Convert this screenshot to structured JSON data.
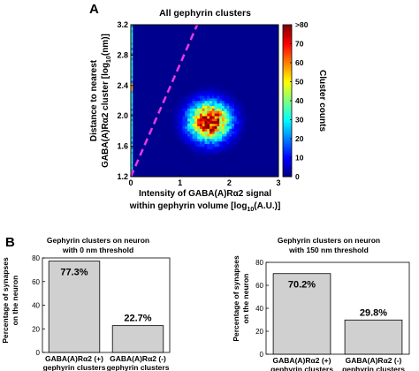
{
  "panels": {
    "A": "A",
    "B": "B"
  },
  "chart_data": [
    {
      "type": "heatmap",
      "title": "All gephyrin clusters",
      "xlabel_line1": "Intensity of GABA(A)Rα2 signal",
      "xlabel_line2_pre": "within gephyrin volume [log",
      "xlabel_line2_sub": "10",
      "xlabel_line2_post": "(A.U.)]",
      "ylabel_line1": "Distance to nearest",
      "ylabel_line2_pre": "GABA(A)Rα2 cluster [log",
      "ylabel_line2_sub": "10",
      "ylabel_line2_post": "(nm)]",
      "xlim": [
        0,
        3
      ],
      "ylim": [
        1.2,
        3.2
      ],
      "xticks": [
        "0",
        "1",
        "2",
        "3"
      ],
      "yticks": [
        "1.2",
        "1.6",
        "2.0",
        "2.4",
        "2.8",
        "3.2"
      ],
      "colorbar": {
        "label": "Cluster counts",
        "range": [
          0,
          80
        ],
        "ticks": [
          "0",
          "10",
          "20",
          "30",
          "40",
          "50",
          "60",
          "70",
          ">80"
        ]
      },
      "density": {
        "peak_x": 1.6,
        "peak_y": 1.93,
        "peak_count": 80,
        "spread_x": 0.28,
        "spread_y": 0.17,
        "bins_x": 60,
        "bins_y": 60,
        "background_count": 0,
        "wall_x": 0.02,
        "wall_count": 55,
        "wall_hot_y": [
          2.34,
          2.44
        ]
      },
      "threshold_line": {
        "from": [
          0,
          1.2
        ],
        "to": [
          1.35,
          3.2
        ],
        "color": "#e838e0",
        "style": "dashed"
      }
    },
    {
      "type": "bar",
      "title_line1": "Gephyrin clusters on neuron",
      "title_line2": "with 0 nm threshold",
      "ylabel_line1": "Percentage of synapses",
      "ylabel_line2": "on the neuron",
      "ylim": [
        0,
        80
      ],
      "yticks": [
        "0",
        "20",
        "40",
        "60",
        "80"
      ],
      "categories": [
        [
          "GABA(A)Rα2 (+)",
          "gephyrin clusters"
        ],
        [
          "GABA(A)Rα2 (-)",
          "gephyrin clusters"
        ]
      ],
      "values": [
        77.3,
        22.7
      ],
      "value_labels": [
        "77.3%",
        "22.7%"
      ],
      "bar_color": "#d0d0d0"
    },
    {
      "type": "bar",
      "title_line1": "Gephyrin clusters on neuron",
      "title_line2": "with 150 nm threshold",
      "ylabel_line1": "Percentage of synapses",
      "ylabel_line2": "on the neuron",
      "ylim": [
        0,
        80
      ],
      "yticks": [
        "0",
        "20",
        "40",
        "60",
        "80"
      ],
      "categories": [
        [
          "GABA(A)Rα2 (+)",
          "gephyrin clusters"
        ],
        [
          "GABA(A)Rα2 (-)",
          "gephyrin clusters"
        ]
      ],
      "values": [
        70.2,
        29.8
      ],
      "value_labels": [
        "70.2%",
        "29.8%"
      ],
      "bar_color": "#d0d0d0"
    }
  ]
}
